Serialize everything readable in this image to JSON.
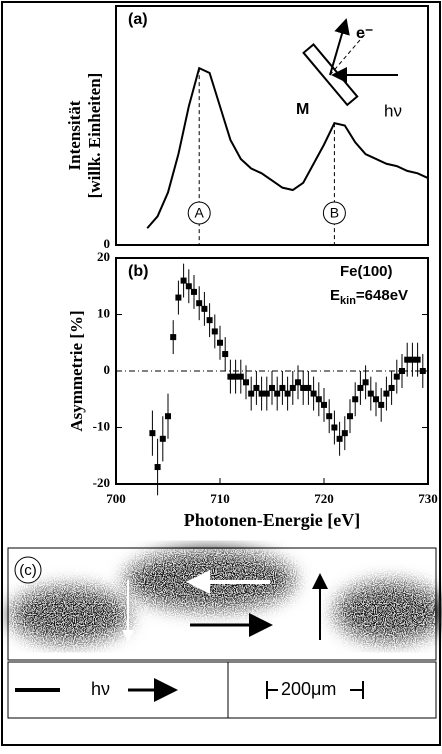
{
  "chart_data": [
    {
      "type": "line",
      "label": "(a)",
      "y_label": [
        "Intensität",
        "[willk. Einheiten]"
      ],
      "x": [
        703,
        704,
        705,
        706,
        707,
        708,
        709,
        710,
        711,
        712,
        713,
        714,
        715,
        716,
        717,
        718,
        719,
        720,
        721,
        722,
        723,
        724,
        725,
        726,
        727,
        728,
        729,
        730
      ],
      "values": [
        7,
        12,
        22,
        38,
        58,
        74,
        72,
        58,
        44,
        36,
        32,
        30,
        27,
        24,
        23,
        26,
        34,
        42,
        51,
        50,
        43,
        38,
        36,
        34,
        33,
        31,
        30,
        28
      ],
      "color": "#000000",
      "xlim": [
        700,
        730
      ],
      "ylim": [
        0,
        100
      ],
      "yticks": [
        0
      ],
      "markers": [
        {
          "x": 708,
          "label": "A"
        },
        {
          "x": 721,
          "label": "B"
        }
      ],
      "inset": {
        "electron": "e⁻",
        "magnetization": "M",
        "photon": "hν"
      }
    },
    {
      "type": "errorbar",
      "label": "(b)",
      "annotations": [
        "Fe(100)"
      ],
      "energy_label": {
        "main": "E",
        "sub": "kin",
        "rest": "=648eV"
      },
      "y_label": "Asymmetrie [%]",
      "x_label": "Photonen-Energie [eV]",
      "x": [
        703.5,
        704,
        704.5,
        705,
        705.5,
        706,
        706.5,
        707,
        707.5,
        708,
        708.5,
        709,
        709.5,
        710,
        710.5,
        711,
        711.5,
        712,
        712.5,
        713,
        713.5,
        714,
        714.5,
        715,
        715.5,
        716,
        716.5,
        717,
        717.5,
        718,
        718.5,
        719,
        719.5,
        720,
        720.5,
        721,
        721.5,
        722,
        722.5,
        723,
        723.5,
        724,
        724.5,
        725,
        725.5,
        726,
        726.5,
        727,
        727.5,
        728,
        728.5,
        729,
        729.5
      ],
      "values": [
        -11,
        -17,
        -12,
        -8,
        6,
        13,
        16,
        15,
        14,
        12,
        11,
        9,
        7,
        5,
        3,
        -1,
        -1,
        -1,
        -2,
        -4,
        -3,
        -4,
        -4,
        -3,
        -4,
        -3,
        -4,
        -3,
        -2,
        -3,
        -3,
        -4,
        -5,
        -6,
        -8,
        -10,
        -12,
        -11,
        -8,
        -5,
        -3,
        -2,
        -4,
        -5,
        -6,
        -4,
        -3,
        -1,
        0,
        2,
        2,
        2,
        0
      ],
      "errors": [
        4,
        5,
        4,
        4,
        3,
        3,
        3,
        3,
        3,
        3,
        3,
        3,
        3,
        3,
        3,
        3,
        3,
        3,
        3,
        3,
        3,
        3,
        3,
        3,
        3,
        3,
        3,
        3,
        3,
        3,
        3,
        3,
        3,
        3,
        3,
        3,
        3,
        3,
        3,
        3,
        3,
        3,
        3,
        3,
        3,
        3,
        3,
        3,
        3,
        3,
        3,
        3,
        3
      ],
      "color": "#000000",
      "xlim": [
        700,
        730
      ],
      "ylim": [
        -20,
        20
      ],
      "yticks": [
        -20,
        -10,
        0,
        10,
        20
      ],
      "xticks": [
        700,
        710,
        720,
        730
      ],
      "zero_line": true
    }
  ],
  "panel_c": {
    "label": "(c)",
    "photon": "hν",
    "scale": "200μm"
  }
}
